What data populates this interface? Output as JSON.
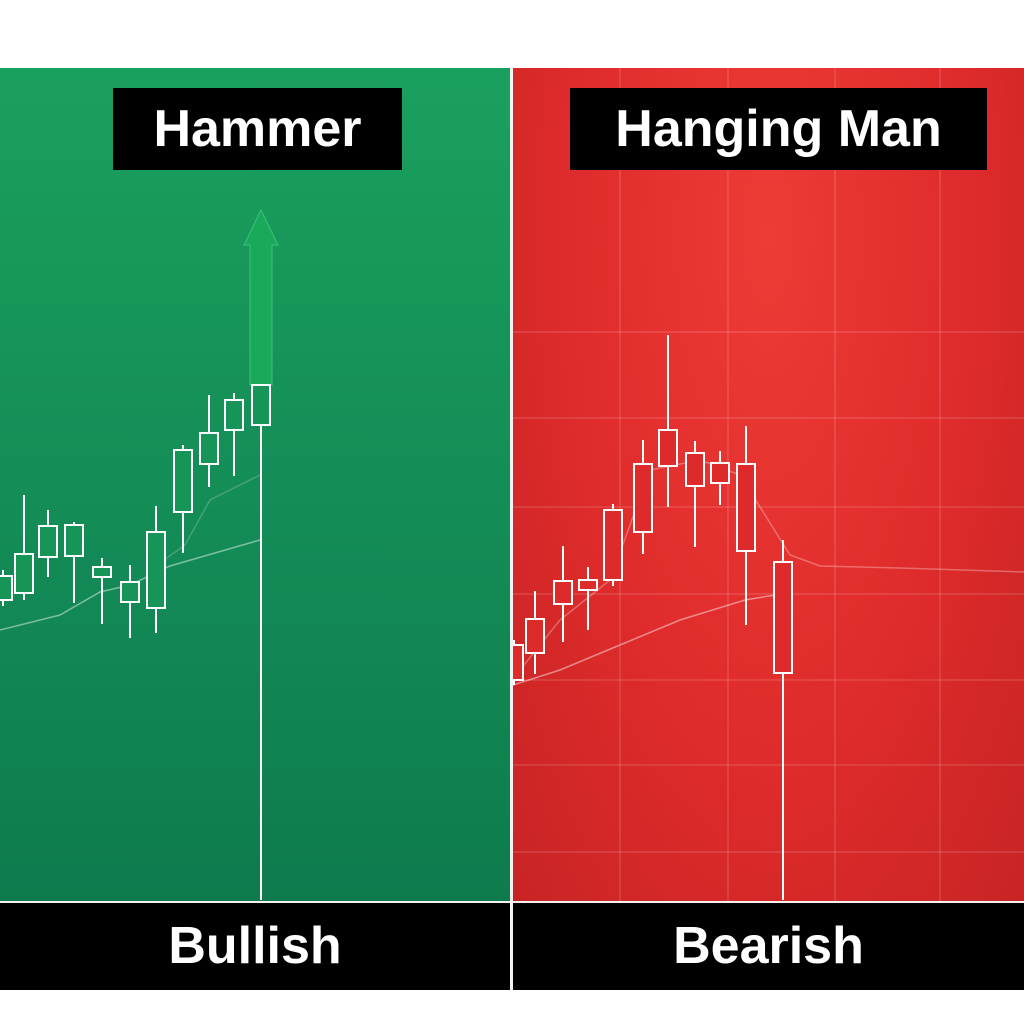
{
  "panels": {
    "left": {
      "title": "Hammer",
      "label": "Bullish",
      "background": "#149658",
      "arrow_color": "#1aa85a",
      "arrow_direction": "up"
    },
    "right": {
      "title": "Hanging Man",
      "label": "Bearish",
      "background": "#df2b2b"
    }
  },
  "colors": {
    "candle": "#ffffff",
    "label_bar": "#000000"
  }
}
